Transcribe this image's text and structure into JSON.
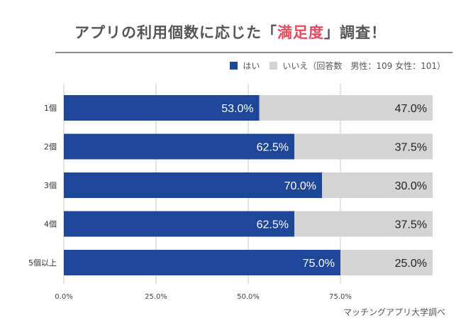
{
  "title": {
    "prefix": "アプリの利用個数に応じた「",
    "highlight": "満足度",
    "suffix": "」調査！"
  },
  "legend": {
    "items": [
      {
        "label": "はい",
        "color": "#1e4699"
      },
      {
        "label": "いいえ",
        "color": "#d4d4d4"
      }
    ],
    "note": "（回答数　男性：109 女性：101）"
  },
  "credit": "マッチングアプリ大学調べ",
  "chart_data": {
    "type": "bar",
    "orientation": "horizontal",
    "stacked": true,
    "categories": [
      "1個",
      "2個",
      "3個",
      "4個",
      "5個以上"
    ],
    "series": [
      {
        "name": "はい",
        "color": "#1e4699",
        "values": [
          53.0,
          62.5,
          70.0,
          62.5,
          75.0
        ]
      },
      {
        "name": "いいえ",
        "color": "#d4d4d4",
        "values": [
          47.0,
          37.5,
          30.0,
          37.5,
          25.0
        ]
      }
    ],
    "data_labels": [
      [
        "53.0%",
        "62.5%",
        "70.0%",
        "62.5%",
        "75.0%"
      ],
      [
        "47.0%",
        "37.5%",
        "30.0%",
        "37.5%",
        "25.0%"
      ]
    ],
    "xticks": [
      "0.0%",
      "25.0%",
      "50.0%",
      "75.0%"
    ],
    "xtick_values": [
      0,
      25,
      50,
      75
    ],
    "xlim": [
      0,
      100
    ],
    "grid": true
  }
}
